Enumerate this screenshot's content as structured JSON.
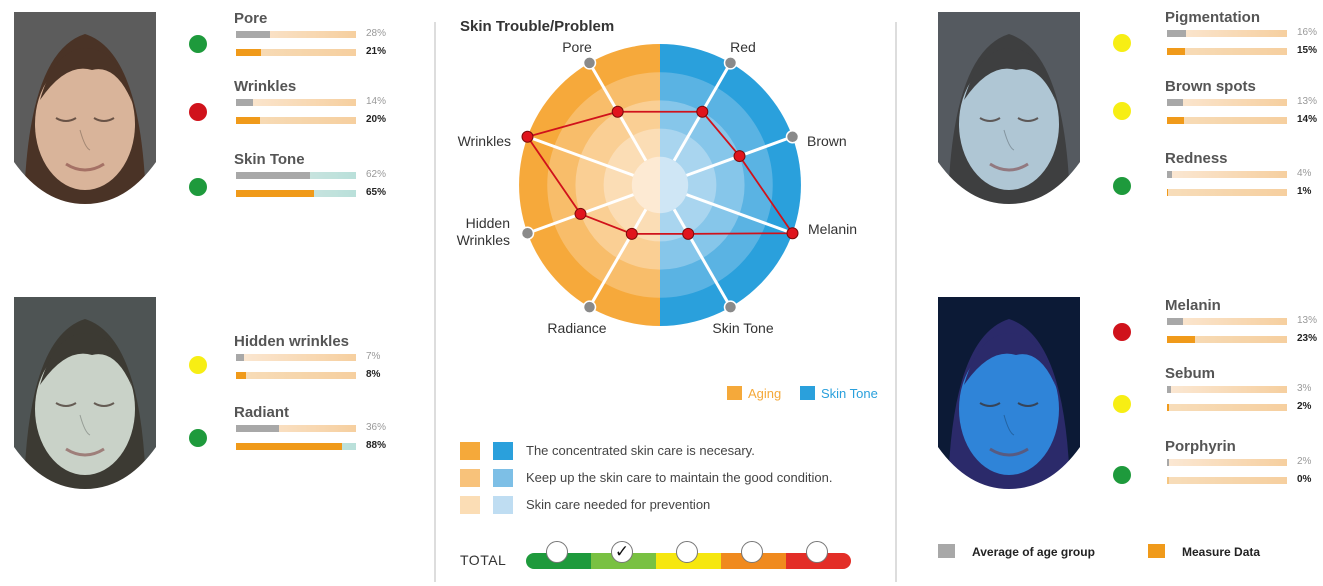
{
  "chart_data": {
    "type": "radar",
    "title": "Skin Trouble/Problem",
    "categories_legend": [
      {
        "name": "Aging",
        "color": "#F5A93A"
      },
      {
        "name": "Skin Tone",
        "color": "#2AA0DC"
      }
    ],
    "axes": [
      {
        "label": "Pore",
        "side": "aging"
      },
      {
        "label": "Wrinkles",
        "side": "aging"
      },
      {
        "label": "Hidden Wrinkles",
        "side": "aging"
      },
      {
        "label": "Radiance",
        "side": "aging"
      },
      {
        "label": "Skin Tone",
        "side": "skin-tone"
      },
      {
        "label": "Melanin",
        "side": "skin-tone"
      },
      {
        "label": "Brown",
        "side": "skin-tone"
      },
      {
        "label": "Red",
        "side": "skin-tone"
      }
    ],
    "level_max": 5,
    "values": [
      3,
      5,
      3,
      2,
      2,
      5,
      3,
      3
    ],
    "guide": [
      {
        "text": "The concentrated skin care is necesary.",
        "aging_color": "#F5A93A",
        "tone_color": "#2AA0DC"
      },
      {
        "text": "Keep up the skin care to maintain the good condition.",
        "aging_color": "#F8C27A",
        "tone_color": "#7DBFE6"
      },
      {
        "text": "Skin care needed for prevention",
        "aging_color": "#FBDDB5",
        "tone_color": "#BFDDF2"
      }
    ],
    "total": {
      "label": "TOTAL",
      "segments": [
        "#1E9A3C",
        "#79C142",
        "#F6E70F",
        "#F08A1E",
        "#E32E27"
      ],
      "selected_index": 1,
      "check_mark": "✓"
    }
  },
  "faces": [
    {
      "name": "face-normal-1",
      "skin": "#D9B49A",
      "hair": "#4A3326",
      "bg": "#5C5C5C"
    },
    {
      "name": "face-polarized",
      "skin": "#C9D2C8",
      "hair": "#3C3A33",
      "bg": "#4E5454"
    },
    {
      "name": "face-cross-polarized",
      "skin": "#AFC6D4",
      "hair": "#3E3F40",
      "bg": "#555A60"
    },
    {
      "name": "face-uv",
      "skin": "#2F84D8",
      "hair": "#2B2A6A",
      "bg": "#0C1A36"
    }
  ],
  "metrics_left": [
    {
      "label": "Pore",
      "status": "#1E9A3C",
      "avg": 28,
      "measure": 21,
      "avg_text": "28%",
      "measure_text": "21%"
    },
    {
      "label": "Wrinkles",
      "status": "#D0121B",
      "avg": 14,
      "measure": 20,
      "avg_text": "14%",
      "measure_text": "20%"
    },
    {
      "label": "Skin Tone",
      "status": "#1E9A3C",
      "avg": 62,
      "measure": 65,
      "avg_text": "62%",
      "measure_text": "65%"
    },
    {
      "label": "Hidden wrinkles",
      "status": "#F7EE14",
      "avg": 7,
      "measure": 8,
      "avg_text": "7%",
      "measure_text": "8%"
    },
    {
      "label": "Radiant",
      "status": "#1E9A3C",
      "avg": 36,
      "measure": 88,
      "avg_text": "36%",
      "measure_text": "88%"
    }
  ],
  "metrics_right": [
    {
      "label": "Pigmentation",
      "status": "#F7EE14",
      "avg": 16,
      "measure": 15,
      "avg_text": "16%",
      "measure_text": "15%"
    },
    {
      "label": "Brown spots",
      "status": "#F7EE14",
      "avg": 13,
      "measure": 14,
      "avg_text": "13%",
      "measure_text": "14%"
    },
    {
      "label": "Redness",
      "status": "#1E9A3C",
      "avg": 4,
      "measure": 1,
      "avg_text": "4%",
      "measure_text": "1%"
    },
    {
      "label": "Melanin",
      "status": "#D0121B",
      "avg": 13,
      "measure": 23,
      "avg_text": "13%",
      "measure_text": "23%"
    },
    {
      "label": "Sebum",
      "status": "#F7EE14",
      "avg": 3,
      "measure": 2,
      "avg_text": "3%",
      "measure_text": "2%"
    },
    {
      "label": "Porphyrin",
      "status": "#1E9A3C",
      "avg": 2,
      "measure": 0,
      "avg_text": "2%",
      "measure_text": "0%"
    }
  ],
  "key": {
    "average_label": "Average of age group",
    "average_color": "#A8A8A8",
    "measure_label": "Measure Data",
    "measure_color": "#F09A1A"
  }
}
